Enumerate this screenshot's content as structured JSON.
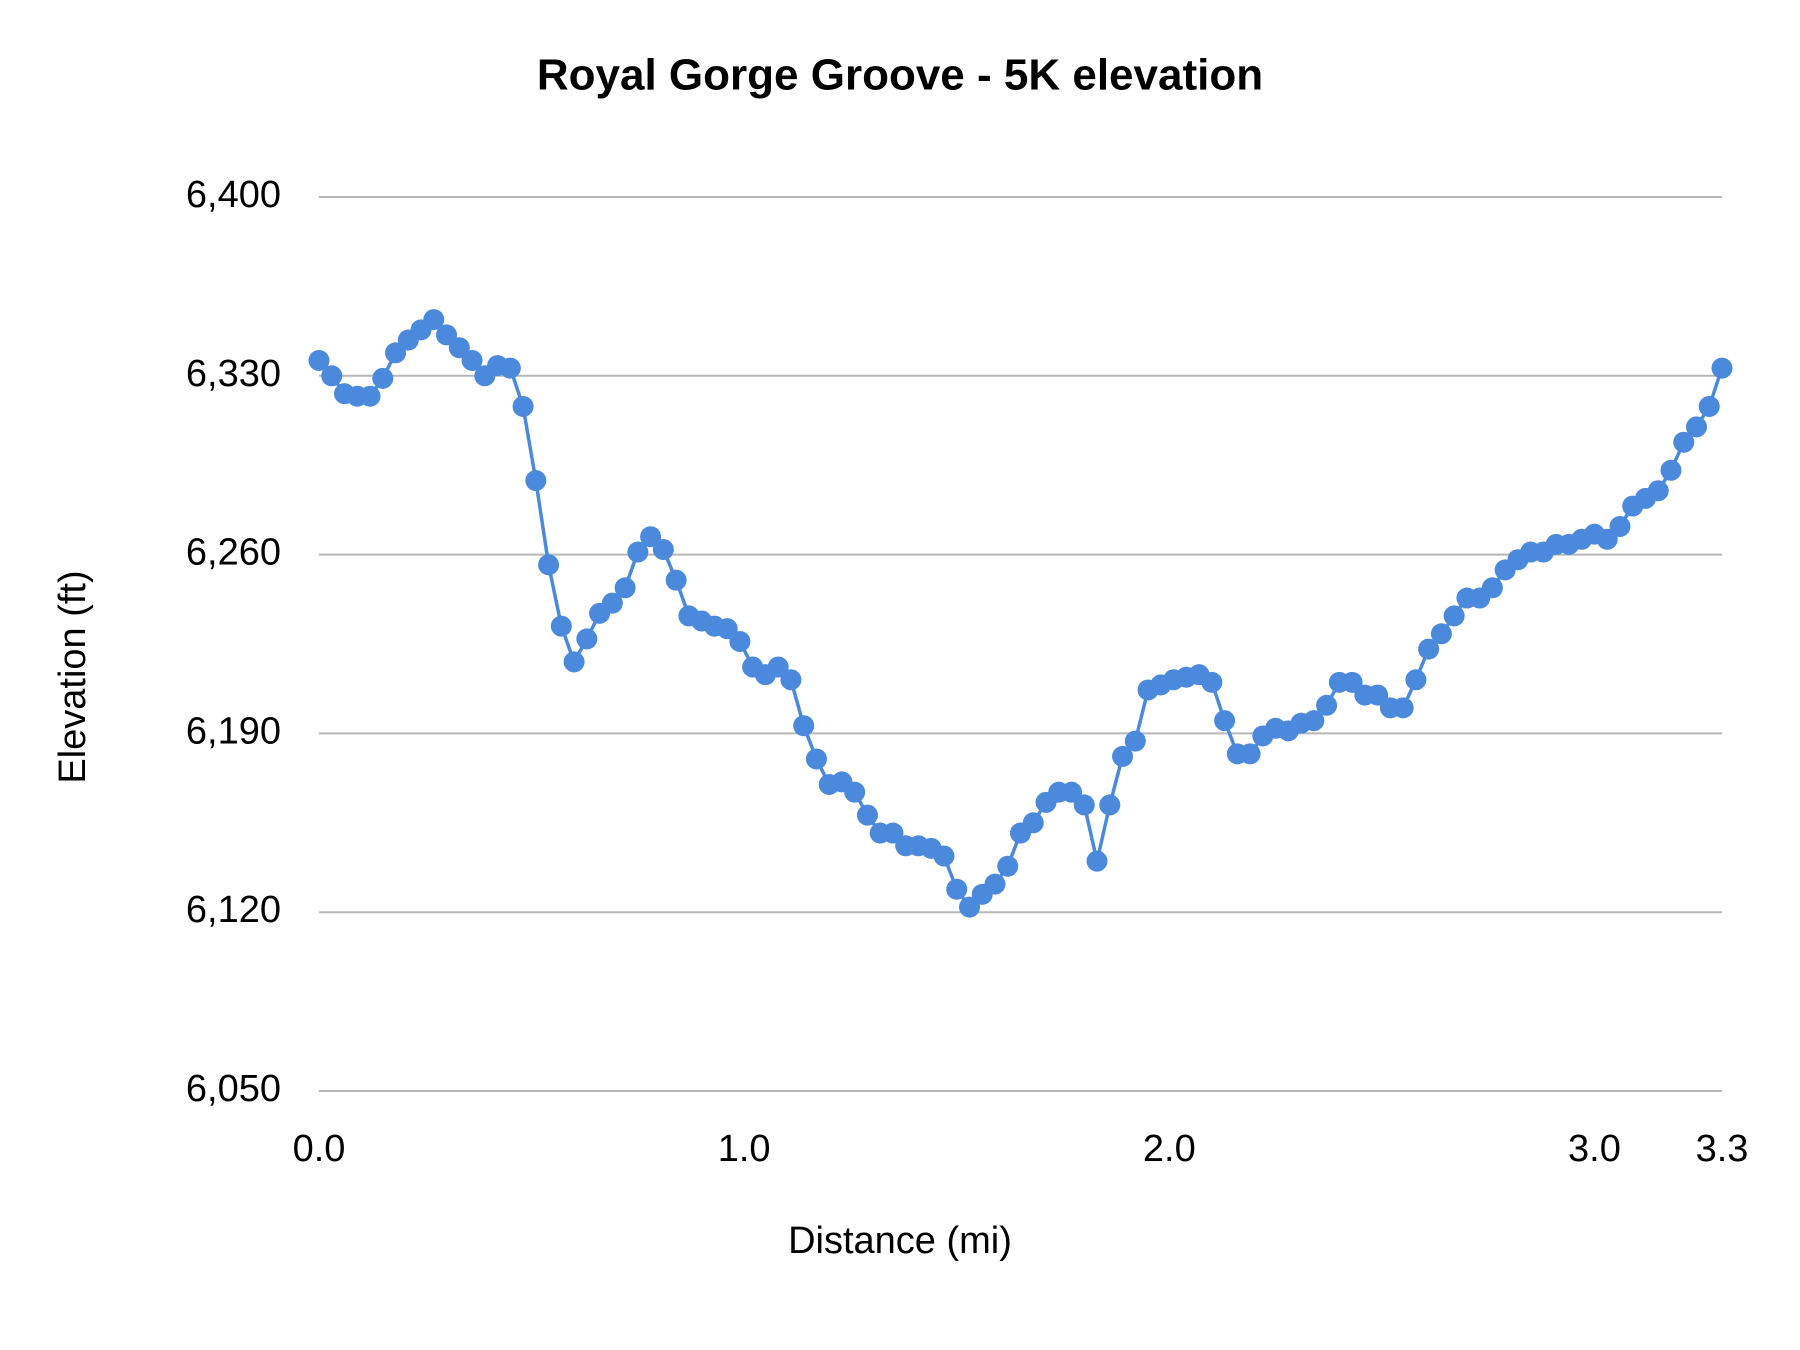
{
  "chart_data": {
    "type": "line",
    "title": "Royal Gorge Groove - 5K elevation",
    "x_label": "Distance (mi)",
    "y_label": "Elevation (ft)",
    "color": "#4a89dc",
    "markers": true,
    "grid": true,
    "xlim": [
      0,
      3.3
    ],
    "ylim": [
      6050,
      6400
    ],
    "xticks": [
      {
        "value": 0,
        "label": "0.0"
      },
      {
        "value": 1,
        "label": "1.0"
      },
      {
        "value": 2,
        "label": "2.0"
      },
      {
        "value": 3,
        "label": "3.0"
      },
      3.3
    ],
    "yticks": [
      {
        "value": 6050,
        "label": "6,050"
      },
      {
        "value": 6120,
        "label": "6,120"
      },
      {
        "value": 6190,
        "label": "6,190"
      },
      {
        "value": 6260,
        "label": "6,260"
      },
      {
        "value": 6330,
        "label": "6,330"
      },
      {
        "value": 6400,
        "label": "6,400"
      }
    ],
    "x": [
      0,
      0.03,
      0.06,
      0.09,
      0.12,
      0.15,
      0.18,
      0.21,
      0.24,
      0.27,
      0.3,
      0.33,
      0.36,
      0.39,
      0.42,
      0.45,
      0.48,
      0.51,
      0.54,
      0.57,
      0.6,
      0.63,
      0.66,
      0.69,
      0.72,
      0.75,
      0.78,
      0.81,
      0.84,
      0.87,
      0.9,
      0.93,
      0.96,
      0.99,
      1.02,
      1.05,
      1.08,
      1.11,
      1.14,
      1.17,
      1.2,
      1.23,
      1.26,
      1.29,
      1.32,
      1.35,
      1.38,
      1.41,
      1.44,
      1.47,
      1.5,
      1.53,
      1.56,
      1.59,
      1.62,
      1.65,
      1.68,
      1.71,
      1.74,
      1.77,
      1.8,
      1.83,
      1.86,
      1.89,
      1.92,
      1.95,
      1.98,
      2.01,
      2.04,
      2.07,
      2.1,
      2.13,
      2.16,
      2.19,
      2.22,
      2.25,
      2.28,
      2.31,
      2.34,
      2.37,
      2.4,
      2.43,
      2.46,
      2.49,
      2.52,
      2.55,
      2.58,
      2.61,
      2.64,
      2.67,
      2.7,
      2.73,
      2.76,
      2.79,
      2.82,
      2.85,
      2.88,
      2.91,
      2.94,
      2.97,
      3.0,
      3.03,
      3.06,
      3.09,
      3.12,
      3.15,
      3.18,
      3.21,
      3.24,
      3.27,
      3.3
    ],
    "values": [
      6336,
      6330,
      6323,
      6322,
      6322,
      6329,
      6339,
      6344,
      6348,
      6352,
      6346,
      6341,
      6336,
      6330,
      6334,
      6333,
      6318,
      6289,
      6256,
      6232,
      6218,
      6227,
      6237,
      6241,
      6247,
      6261,
      6267,
      6262,
      6250,
      6236,
      6234,
      6232,
      6231,
      6226,
      6216,
      6213,
      6216,
      6211,
      6193,
      6180,
      6170,
      6171,
      6167,
      6158,
      6151,
      6151,
      6146,
      6146,
      6145,
      6142,
      6129,
      6122,
      6127,
      6131,
      6138,
      6151,
      6155,
      6163,
      6167,
      6167,
      6162,
      6140,
      6162,
      6181,
      6187,
      6207,
      6209,
      6211,
      6212,
      6213,
      6210,
      6195,
      6182,
      6182,
      6189,
      6192,
      6191,
      6194,
      6195,
      6201,
      6210,
      6210,
      6205,
      6205,
      6200,
      6200,
      6211,
      6223,
      6229,
      6236,
      6243,
      6243,
      6247,
      6254,
      6258,
      6261,
      6261,
      6264,
      6264,
      6266,
      6268,
      6266,
      6271,
      6279,
      6282,
      6285,
      6293,
      6304,
      6310,
      6318,
      6333
    ]
  }
}
